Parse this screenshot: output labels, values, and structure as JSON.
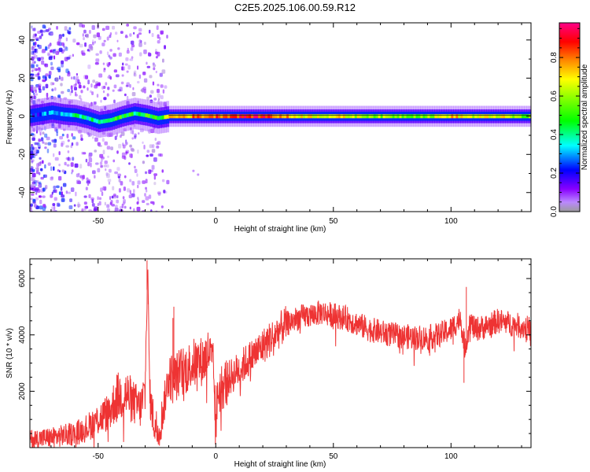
{
  "figure": {
    "title": "C2E5.2025.106.00.59.R12"
  },
  "chart_data": [
    {
      "type": "heatmap",
      "title": "C2E5.2025.106.00.59.R12",
      "xlabel": "Height of straight line (km)",
      "ylabel": "Frequency (Hz)",
      "xlim": [
        -79,
        134
      ],
      "ylim": [
        -50,
        49
      ],
      "x_ticks": [
        -50,
        0,
        50,
        100
      ],
      "y_ticks": [
        -40,
        -20,
        0,
        20,
        40
      ],
      "colorbar": {
        "label": "Normalized spectral amplitude",
        "range": [
          0,
          0.98
        ],
        "ticks": [
          0.0,
          0.2,
          0.4,
          0.6,
          0.8
        ],
        "colormap": [
          "#9b9b9b",
          "#8800ff",
          "#0000ff",
          "#00ffff",
          "#00ff00",
          "#ffff00",
          "#ff8800",
          "#ff0000",
          "#ff00aa"
        ]
      },
      "ridge": [
        {
          "x": -75,
          "y": 1.0,
          "amp": 0.25
        },
        {
          "x": -70,
          "y": 2.0,
          "amp": 0.3
        },
        {
          "x": -65,
          "y": 1.0,
          "amp": 0.35
        },
        {
          "x": -60,
          "y": 0.5,
          "amp": 0.4
        },
        {
          "x": -55,
          "y": -1.0,
          "amp": 0.4
        },
        {
          "x": -50,
          "y": -3.0,
          "amp": 0.4
        },
        {
          "x": -45,
          "y": -2.0,
          "amp": 0.45
        },
        {
          "x": -40,
          "y": 0.0,
          "amp": 0.5
        },
        {
          "x": -35,
          "y": 1.5,
          "amp": 0.45
        },
        {
          "x": -30,
          "y": 0.5,
          "amp": 0.5
        },
        {
          "x": -25,
          "y": -1.0,
          "amp": 0.45
        },
        {
          "x": -20,
          "y": 0.0,
          "amp": 0.75
        },
        {
          "x": -10,
          "y": 0.0,
          "amp": 0.8
        },
        {
          "x": 0,
          "y": 0.0,
          "amp": 0.85
        },
        {
          "x": 10,
          "y": 0.0,
          "amp": 0.9
        },
        {
          "x": 20,
          "y": 0.0,
          "amp": 0.9
        },
        {
          "x": 30,
          "y": 0.0,
          "amp": 0.75
        },
        {
          "x": 40,
          "y": 0.0,
          "amp": 0.7
        },
        {
          "x": 50,
          "y": 0.0,
          "amp": 0.7
        },
        {
          "x": 60,
          "y": 0.0,
          "amp": 0.65
        },
        {
          "x": 70,
          "y": 0.0,
          "amp": 0.6
        },
        {
          "x": 80,
          "y": 0.0,
          "amp": 0.6
        },
        {
          "x": 90,
          "y": 0.0,
          "amp": 0.6
        },
        {
          "x": 100,
          "y": 0.0,
          "amp": 0.75
        },
        {
          "x": 110,
          "y": 0.0,
          "amp": 0.65
        },
        {
          "x": 120,
          "y": 0.0,
          "amp": 0.7
        },
        {
          "x": 130,
          "y": 0.0,
          "amp": 0.55
        }
      ],
      "grid": false
    },
    {
      "type": "line",
      "xlabel": "Height of straight line (km)",
      "ylabel": "SNR (10 * v/v)",
      "xlim": [
        -79,
        134
      ],
      "ylim": [
        0,
        6700
      ],
      "x_ticks": [
        -50,
        0,
        50,
        100
      ],
      "y_ticks": [
        2000,
        4000,
        6000
      ],
      "color": "#ee3333",
      "x": [
        -79,
        -70,
        -60,
        -55,
        -50,
        -45,
        -42,
        -38,
        -35,
        -32,
        -30,
        -29,
        -28,
        -26,
        -24,
        -22,
        -20,
        -18,
        -15,
        -12,
        -10,
        -8,
        -5,
        -3,
        -1,
        0,
        1,
        3,
        5,
        10,
        15,
        20,
        25,
        30,
        35,
        40,
        45,
        50,
        55,
        60,
        65,
        70,
        75,
        80,
        85,
        90,
        95,
        100,
        104,
        106,
        108,
        110,
        115,
        120,
        125,
        130,
        134
      ],
      "y": [
        300,
        350,
        500,
        700,
        1000,
        1300,
        1800,
        1900,
        1600,
        1400,
        2000,
        6500,
        1800,
        800,
        600,
        1500,
        2600,
        2400,
        2700,
        2800,
        3000,
        3000,
        3100,
        3400,
        2800,
        900,
        2000,
        2200,
        2400,
        2800,
        3200,
        3600,
        4000,
        4400,
        4600,
        4700,
        4800,
        4700,
        4600,
        4400,
        4200,
        4100,
        4000,
        3950,
        3900,
        3900,
        4000,
        4200,
        4600,
        3500,
        4500,
        4200,
        4300,
        4500,
        4400,
        4300,
        4200
      ]
    }
  ]
}
